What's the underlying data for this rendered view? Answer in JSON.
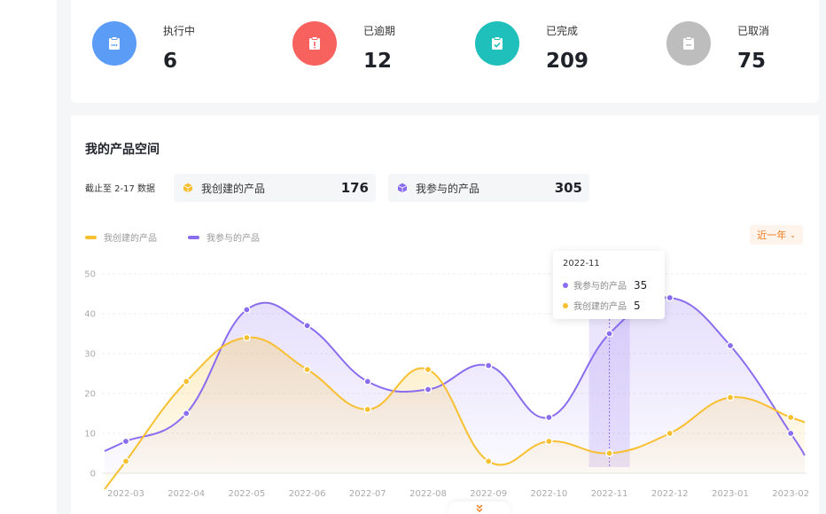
{
  "stats": [
    {
      "label": "执行中",
      "value": "6",
      "color": "#5b9cf6",
      "icon": "clipboard-dots-icon"
    },
    {
      "label": "已逾期",
      "value": "12",
      "color": "#f8625e",
      "icon": "clipboard-alert-icon"
    },
    {
      "label": "已完成",
      "value": "209",
      "color": "#1fbfbb",
      "icon": "clipboard-check-icon"
    },
    {
      "label": "已取消",
      "value": "75",
      "color": "#bdbdbd",
      "icon": "clipboard-minus-icon"
    }
  ],
  "section": {
    "title": "我的产品空间",
    "as_of": "截止至 2-17 数据",
    "created": {
      "label": "我创建的产品",
      "value": "176",
      "icon": "cube-icon",
      "color": "#f8c031"
    },
    "joined": {
      "label": "我参与的产品",
      "value": "305",
      "icon": "cube-icon",
      "color": "#8a6cf0"
    }
  },
  "range_select": {
    "label": "近一年"
  },
  "tooltip": {
    "title": "2022-11",
    "rows": [
      {
        "name": "我参与的产品",
        "value": "35"
      },
      {
        "name": "我创建的产品",
        "value": "5"
      }
    ]
  },
  "colors": {
    "joined": "#8a6cf0",
    "created": "#f8c031",
    "accent": "#f07a1a"
  },
  "chart_data": {
    "type": "area",
    "categories": [
      "2022-03",
      "2022-04",
      "2022-05",
      "2022-06",
      "2022-07",
      "2022-08",
      "2022-09",
      "2022-10",
      "2022-11",
      "2022-12",
      "2023-01",
      "2023-02"
    ],
    "series": [
      {
        "name": "我创建的产品",
        "values": [
          3,
          23,
          34,
          26,
          16,
          26,
          3,
          8,
          5,
          10,
          19,
          14
        ]
      },
      {
        "name": "我参与的产品",
        "values": [
          8,
          15,
          41,
          37,
          23,
          21,
          27,
          14,
          35,
          44,
          32,
          10
        ]
      }
    ],
    "yticks": [
      "0",
      "10",
      "20",
      "30",
      "40",
      "50"
    ],
    "ylim": [
      0,
      50
    ],
    "legend": "top-left",
    "grid": true,
    "highlight_category": "2022-11"
  }
}
